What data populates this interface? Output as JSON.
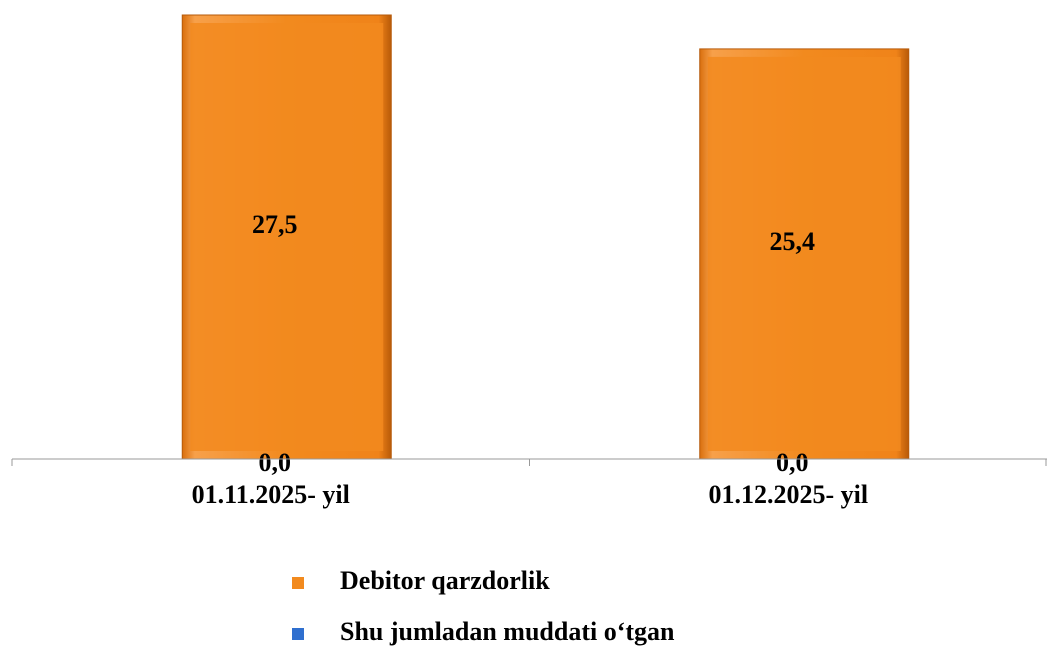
{
  "chart_data": {
    "type": "bar",
    "categories": [
      "01.11.2025- yil",
      "01.12.2025- yil"
    ],
    "series": [
      {
        "name": "Debitor qarzdorlik",
        "color": "#f28a1e",
        "values": [
          27.5,
          25.4
        ],
        "value_labels": [
          "27,5",
          "25,4"
        ]
      },
      {
        "name": "Shu jumladan muddati o‘tgan",
        "color": "#2f6fcf",
        "values": [
          0,
          0
        ],
        "value_labels": [
          "0,0",
          "0,0"
        ]
      }
    ],
    "legend": "bottom"
  }
}
